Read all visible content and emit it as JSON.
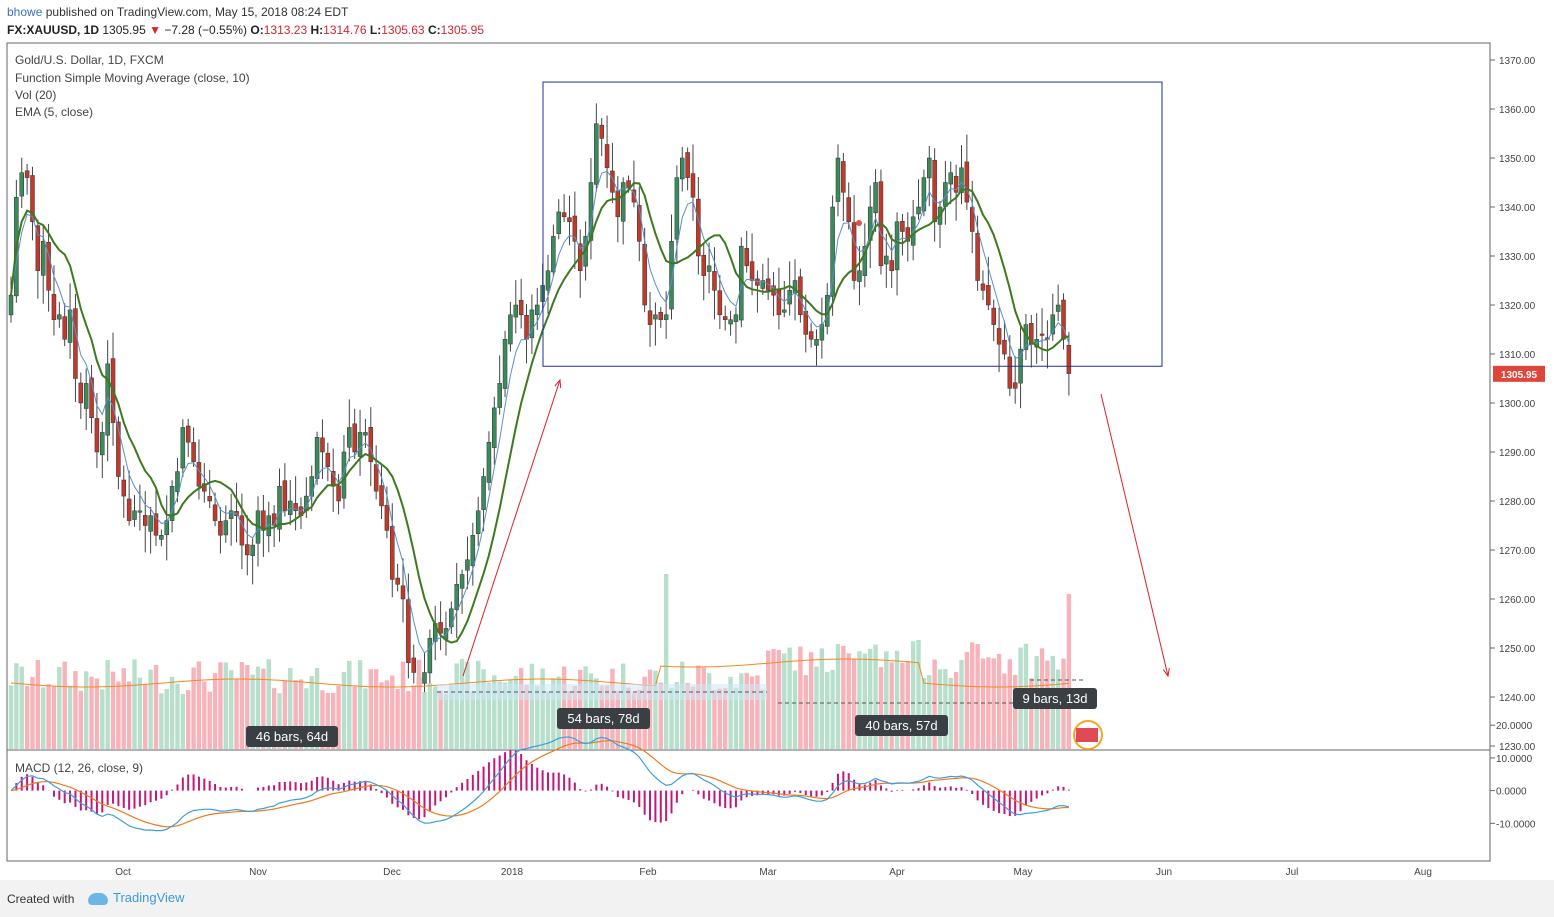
{
  "header": {
    "user": "bhowe",
    "published_text": "published on TradingView.com, May 15, 2018 08:24 EDT"
  },
  "ohlc": {
    "symbol": "FX:XAUUSD, 1D",
    "price": "1305.95",
    "change_arrow": "▼",
    "change": "−7.28 (−0.55%)",
    "o_label": "O:",
    "o": "1313.23",
    "h_label": "H:",
    "h": "1314.76",
    "l_label": "L:",
    "l": "1305.63",
    "c_label": "C:",
    "c": "1305.95"
  },
  "legend": {
    "title": "Gold/U.S. Dollar, 1D, FXCM",
    "sma": "Function Simple Moving Average (close, 10)",
    "vol": "Vol (20)",
    "ema": "EMA (5, close)",
    "macd": "MACD (12, 26, close, 9)"
  },
  "colors": {
    "up": "#3a8a5c",
    "down": "#c0392b",
    "vol_up": "#b7dfcb",
    "vol_down": "#f7b3ba",
    "sma": "#3d7a1f",
    "ema": "#5b8fc9",
    "vol_ma": "#f08a24",
    "macd": "#3c9ee0",
    "signal": "#f07a1b",
    "hist": "#c2187a",
    "box": "#1f2d9a",
    "arrow": "#e02020",
    "price_tag": "#e0453a"
  },
  "measurements": [
    {
      "label": "46 bars, 64d"
    },
    {
      "label": "54 bars, 78d"
    },
    {
      "label": "40 bars, 57d"
    },
    {
      "label": "9 bars, 13d"
    }
  ],
  "footer": {
    "created_with": "Created with",
    "brand": "TradingView"
  },
  "chart_data": {
    "type": "candlestick",
    "title": "Gold/U.S. Dollar, 1D, FXCM",
    "symbol": "FX:XAUUSD",
    "last_price": "1305.95",
    "y_ticks": [
      "1370.00",
      "1360.00",
      "1350.00",
      "1340.00",
      "1330.00",
      "1320.00",
      "1310.00",
      "1300.00",
      "1290.00",
      "1280.00",
      "1270.00",
      "1260.00",
      "1250.00",
      "1240.00",
      "1230.00"
    ],
    "macd_ticks": [
      "20.0000",
      "10.0000",
      "0.0000",
      "-10.0000"
    ],
    "x_labels": [
      "Oct",
      "Nov",
      "Dec",
      "2018",
      "Feb",
      "Mar",
      "Apr",
      "May",
      "Jun",
      "Jul",
      "Aug"
    ],
    "ylim": [
      1230,
      1372
    ],
    "box": {
      "price_top": 1365.5,
      "price_bottom": 1307.5,
      "from": "2018-01-03",
      "to": "2018-06-01"
    },
    "closes": [
      1322,
      1342,
      1347,
      1346,
      1337,
      1327,
      1333,
      1323,
      1317,
      1318,
      1313,
      1319,
      1305,
      1300,
      1304,
      1297,
      1290,
      1294,
      1308,
      1296,
      1285,
      1281,
      1276,
      1278,
      1278,
      1275,
      1277,
      1273,
      1273,
      1276,
      1283,
      1286,
      1295,
      1292,
      1288,
      1283,
      1282,
      1280,
      1276,
      1273,
      1276,
      1278,
      1277,
      1271,
      1269,
      1271,
      1278,
      1274,
      1277,
      1275,
      1283,
      1278,
      1280,
      1278,
      1277,
      1281,
      1285,
      1293,
      1290,
      1287,
      1283,
      1280,
      1290,
      1295,
      1290,
      1294,
      1294,
      1288,
      1282,
      1279,
      1274,
      1264,
      1263,
      1260,
      1247,
      1245,
      1242,
      1245,
      1252,
      1255,
      1253,
      1254,
      1258,
      1263,
      1265,
      1268,
      1273,
      1278,
      1285,
      1292,
      1299,
      1304,
      1313,
      1318,
      1320,
      1318,
      1313,
      1319,
      1320,
      1324,
      1327,
      1334,
      1339,
      1338,
      1337,
      1333,
      1327,
      1334,
      1345,
      1357,
      1354,
      1348,
      1343,
      1338,
      1345,
      1344,
      1341,
      1333,
      1320,
      1316,
      1318,
      1317,
      1318,
      1333,
      1346,
      1350,
      1346,
      1342,
      1330,
      1326,
      1328,
      1323,
      1318,
      1317,
      1317,
      1318,
      1332,
      1328,
      1325,
      1324,
      1325,
      1323,
      1322,
      1318,
      1319,
      1323,
      1325,
      1318,
      1314,
      1313,
      1313,
      1316,
      1322,
      1340,
      1350,
      1343,
      1337,
      1325,
      1327,
      1332,
      1340,
      1345,
      1328,
      1330,
      1327,
      1337,
      1335,
      1333,
      1338,
      1340,
      1346,
      1350,
      1337,
      1340,
      1345,
      1347,
      1343,
      1348,
      1341,
      1335,
      1325,
      1323,
      1320,
      1316,
      1312,
      1310,
      1303,
      1303,
      1311,
      1316,
      1312,
      1313,
      1314,
      1313,
      1318,
      1320,
      1313,
      1306
    ]
  }
}
